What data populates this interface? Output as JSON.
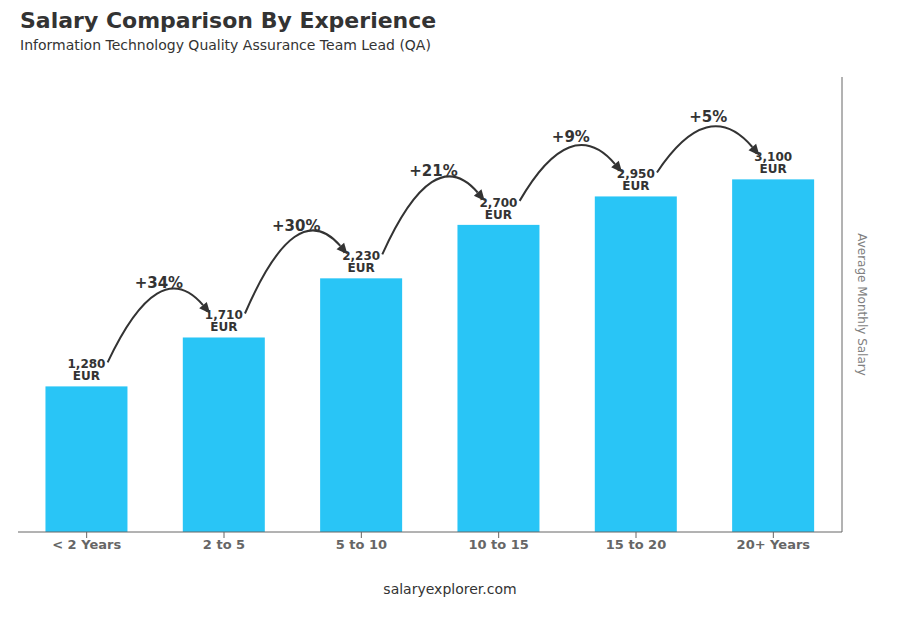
{
  "chart_data": {
    "type": "bar",
    "title": "Salary Comparison By Experience",
    "subtitle": "Information Technology Quality Assurance Team Lead (QA)",
    "categories": [
      "< 2 Years",
      "2 to 5",
      "5 to 10",
      "10 to 15",
      "15 to 20",
      "20+ Years"
    ],
    "values": [
      1280,
      1710,
      2230,
      2700,
      2950,
      3100
    ],
    "value_labels": [
      "1,280 EUR",
      "1,710 EUR",
      "2,230 EUR",
      "2,700 EUR",
      "2,950 EUR",
      "3,100 EUR"
    ],
    "data_labels": true,
    "growth_labels": [
      null,
      "+34%",
      "+30%",
      "+21%",
      "+9%",
      "+5%"
    ],
    "color": "#29c5f6",
    "ylim": [
      0,
      4000
    ],
    "tick_labels": "x",
    "grid": false,
    "y_label": "Average Monthly Salary",
    "watermark": "salaryexplorer.com"
  }
}
